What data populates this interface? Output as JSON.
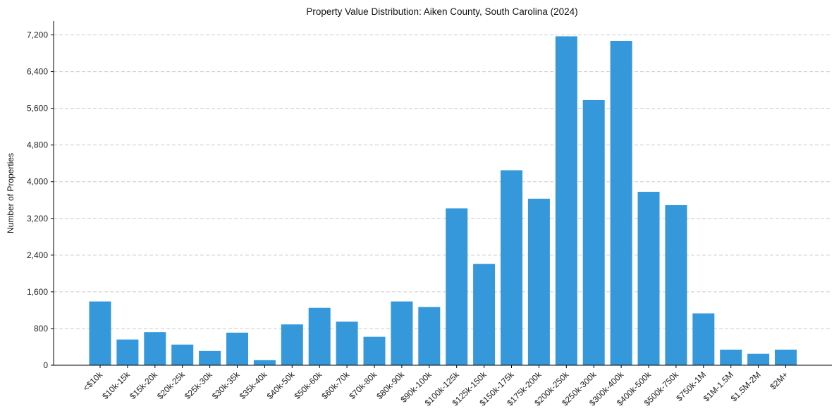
{
  "chart_data": {
    "type": "bar",
    "title": "Property Value Distribution: Aiken County, South Carolina (2024)",
    "xlabel": "",
    "ylabel": "Number of Properties",
    "ylim": [
      0,
      7500
    ],
    "yticks": [
      0,
      800,
      1600,
      2400,
      3200,
      4000,
      4800,
      5600,
      6400,
      7200
    ],
    "ytick_labels": [
      "0",
      "800",
      "1,600",
      "2,400",
      "3,200",
      "4,000",
      "4,800",
      "5,600",
      "6,400",
      "7,200"
    ],
    "grid": "y-dashed",
    "bar_color": "#3498db",
    "categories": [
      "<$10k",
      "$10k-15k",
      "$15k-20k",
      "$20k-25k",
      "$25k-30k",
      "$30k-35k",
      "$35k-40k",
      "$40k-50k",
      "$50k-60k",
      "$60k-70k",
      "$70k-80k",
      "$80k-90k",
      "$90k-100k",
      "$100k-125k",
      "$125k-150k",
      "$150k-175k",
      "$175k-200k",
      "$200k-250k",
      "$250k-300k",
      "$300k-400k",
      "$400k-500k",
      "$500k-750k",
      "$750k-1M",
      "$1M-1.5M",
      "$1.5M-2M",
      "$2M+"
    ],
    "values": [
      1390,
      560,
      720,
      450,
      310,
      710,
      110,
      890,
      1250,
      950,
      620,
      1390,
      1270,
      3420,
      2210,
      4250,
      3630,
      7170,
      5780,
      7070,
      3780,
      3490,
      1130,
      340,
      250,
      340
    ]
  }
}
